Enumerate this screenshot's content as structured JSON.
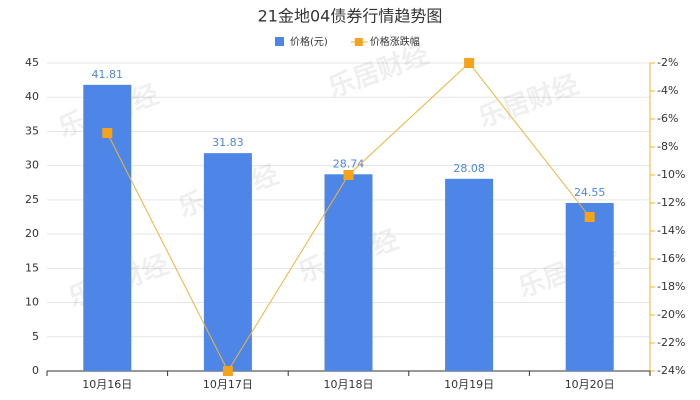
{
  "chart_data": {
    "type": "bar-line",
    "title": "21金地04债券行情趋势图",
    "watermark": "乐居财经",
    "categories": [
      "10月16日",
      "10月17日",
      "10月18日",
      "10月19日",
      "10月20日"
    ],
    "series": [
      {
        "name": "价格(元)",
        "type": "bar",
        "color": "#4d86e6",
        "values": [
          41.81,
          31.83,
          28.74,
          28.08,
          24.55
        ]
      },
      {
        "name": "价格涨跌幅",
        "type": "line",
        "axis": "y2",
        "color": "#f5b335",
        "marker_color": "#f5a31a",
        "values": [
          -7,
          -24,
          -10,
          -2,
          -13
        ]
      }
    ],
    "ylim": [
      0,
      45
    ],
    "yticks": [
      0,
      5,
      10,
      15,
      20,
      25,
      30,
      35,
      40,
      45
    ],
    "y2lim": [
      -24,
      -2
    ],
    "y2ticks": [
      {
        "value": -24,
        "label": "-24%"
      },
      {
        "value": -22,
        "label": "-22%"
      },
      {
        "value": -20,
        "label": "-20%"
      },
      {
        "value": -18,
        "label": "-18%"
      },
      {
        "value": -16,
        "label": "-16%"
      },
      {
        "value": -14,
        "label": "-14%"
      },
      {
        "value": -12,
        "label": "-12%"
      },
      {
        "value": -10,
        "label": "-10%"
      },
      {
        "value": -8,
        "label": "-8%"
      },
      {
        "value": -6,
        "label": "-6%"
      },
      {
        "value": -4,
        "label": "-4%"
      },
      {
        "value": -2,
        "label": "-2%"
      }
    ],
    "grid": true
  }
}
